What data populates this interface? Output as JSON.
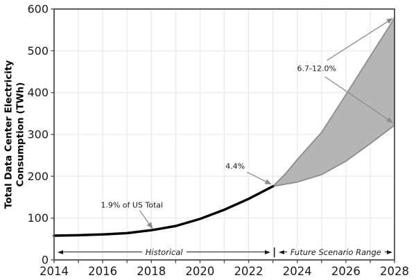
{
  "colors": {
    "historical_line": "#000000",
    "band_fill": "#b5b5b5",
    "band_edge": "#8c8c8c",
    "arrow": "#8c8c8c",
    "grid": "#e7e7e7",
    "spine": "#4d4d4d",
    "tick_label": "#1a1a1a"
  },
  "chart_data": {
    "type": "area",
    "title": "",
    "xlabel": "",
    "ylabel": [
      "Total Data Center Electricity",
      "Consumption (TWh)"
    ],
    "xlim": [
      2014,
      2028
    ],
    "ylim": [
      0,
      600
    ],
    "grid": true,
    "x_minor_tick_step_years": 1,
    "x_major_tick_labels": [
      "2014",
      "2016",
      "2018",
      "2020",
      "2022",
      "2024",
      "2026",
      "2028"
    ],
    "y_tick_labels": [
      "0",
      "100",
      "200",
      "300",
      "400",
      "500",
      "600"
    ],
    "series": [
      {
        "name": "historical",
        "type": "line",
        "x": [
          2014,
          2015,
          2016,
          2017,
          2018,
          2019,
          2020,
          2021,
          2022,
          2023
        ],
        "y": [
          58,
          59,
          61,
          64,
          71,
          81,
          98,
          120,
          146,
          176
        ]
      },
      {
        "name": "future_scenario_range",
        "type": "band",
        "x_upper": [
          2023,
          2023.5,
          2024,
          2025,
          2026,
          2027,
          2028
        ],
        "y_upper": [
          176,
          205,
          240,
          305,
          395,
          487,
          578
        ],
        "x_lower": [
          2023,
          2024,
          2025,
          2026,
          2027,
          2028
        ],
        "y_lower": [
          176,
          186,
          204,
          236,
          278,
          322
        ]
      }
    ],
    "annotations": [
      {
        "text": "1.9% of US Total",
        "text_x": 2017.2,
        "text_y": 131,
        "arrows": [
          {
            "x1": 2017.52,
            "y1": 118,
            "x2": 2018.05,
            "y2": 75
          }
        ]
      },
      {
        "text": "4.4%",
        "text_x": 2021.45,
        "text_y": 224,
        "arrows": [
          {
            "x1": 2021.93,
            "y1": 210,
            "x2": 2022.93,
            "y2": 181
          }
        ]
      },
      {
        "text": "6.7-12.0%",
        "text_x": 2024.8,
        "text_y": 458,
        "arrows": [
          {
            "x1": 2025.22,
            "y1": 477,
            "x2": 2027.93,
            "y2": 578
          },
          {
            "x1": 2025.14,
            "y1": 438,
            "x2": 2027.93,
            "y2": 328
          }
        ]
      }
    ],
    "span_labels": [
      {
        "text": "Historical",
        "x_start": 2014.15,
        "x_end": 2022.9,
        "y": 19
      },
      {
        "text": "Future Scenario Range",
        "x_start": 2023.25,
        "x_end": 2027.92,
        "y": 19
      }
    ],
    "span_divider": {
      "glyph": "|",
      "x": 2023.06,
      "y": 19
    }
  }
}
